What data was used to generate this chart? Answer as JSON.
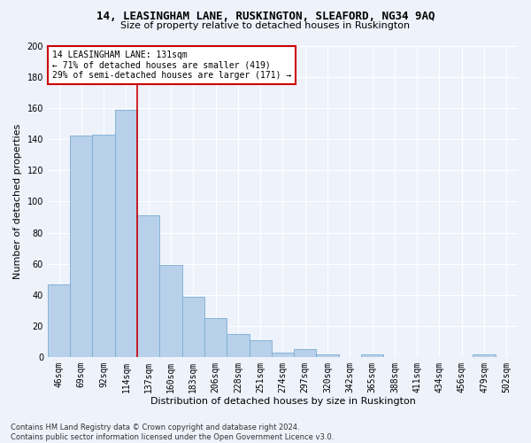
{
  "title": "14, LEASINGHAM LANE, RUSKINGTON, SLEAFORD, NG34 9AQ",
  "subtitle": "Size of property relative to detached houses in Ruskington",
  "xlabel": "Distribution of detached houses by size in Ruskington",
  "ylabel": "Number of detached properties",
  "categories": [
    "46sqm",
    "69sqm",
    "92sqm",
    "114sqm",
    "137sqm",
    "160sqm",
    "183sqm",
    "206sqm",
    "228sqm",
    "251sqm",
    "274sqm",
    "297sqm",
    "320sqm",
    "342sqm",
    "365sqm",
    "388sqm",
    "411sqm",
    "434sqm",
    "456sqm",
    "479sqm",
    "502sqm"
  ],
  "values": [
    47,
    142,
    143,
    159,
    91,
    59,
    39,
    25,
    15,
    11,
    3,
    5,
    2,
    0,
    2,
    0,
    0,
    0,
    0,
    2,
    0
  ],
  "bar_color": "#b8d0ea",
  "bar_edge_color": "#7aadd4",
  "vline_index": 4,
  "vline_color": "#cc0000",
  "annotation_line1": "14 LEASINGHAM LANE: 131sqm",
  "annotation_line2": "← 71% of detached houses are smaller (419)",
  "annotation_line3": "29% of semi-detached houses are larger (171) →",
  "annotation_box_color": "#ffffff",
  "annotation_box_edge": "#cc0000",
  "ylim": [
    0,
    200
  ],
  "yticks": [
    0,
    20,
    40,
    60,
    80,
    100,
    120,
    140,
    160,
    180,
    200
  ],
  "footnote": "Contains HM Land Registry data © Crown copyright and database right 2024.\nContains public sector information licensed under the Open Government Licence v3.0.",
  "bg_color": "#eef2fb",
  "grid_color": "#ffffff",
  "title_fontsize": 9,
  "subtitle_fontsize": 8,
  "xlabel_fontsize": 8,
  "ylabel_fontsize": 8,
  "tick_fontsize": 7,
  "annot_fontsize": 7,
  "footnote_fontsize": 6
}
